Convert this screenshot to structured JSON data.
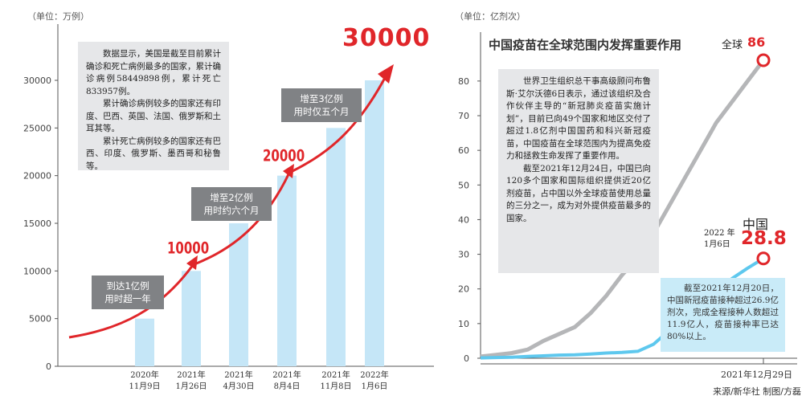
{
  "left": {
    "unit": "（单位：万例）",
    "note_paragraphs": [
      "数据显示，美国是截至目前累计确诊和死亡病例最多的国家，累计确诊病例58449898例，累计死亡833957例。",
      "累计确诊病例较多的国家还有印度、巴西、英国、法国、俄罗斯和土耳其等。",
      "累计死亡病例较多的国家还有巴西、印度、俄罗斯、墨西哥和秘鲁等。"
    ],
    "callouts": [
      "到达1亿例\n用时超一年",
      "增至2亿例\n用时约六个月",
      "增至3亿例\n用时仅五个月"
    ],
    "milestones": [
      "10000",
      "20000",
      "30000"
    ]
  },
  "right": {
    "unit": "（单位：亿剂次）",
    "title": "中国疫苗在全球范围内发挥重要作用",
    "note_paragraphs": [
      "世界卫生组织总干事高级顾问布鲁斯·艾尔沃德6日表示，通过该组织及合作伙伴主导的“新冠肺炎疫苗实施计划”，目前已向49个国家和地区交付了超过1.8亿剂中国国药和科兴新冠疫苗，中国疫苗在全球范围内为提高免疫力和拯救生命发挥了重要作用。",
      "截至2021年12月24日，中国已向120多个国家和国际组织提供近20亿剂疫苗，占中国以外全球疫苗使用总量的三分之一，成为对外提供疫苗最多的国家。"
    ],
    "blue_note": "截至2021年12月20日，中国新冠疫苗接种超过26.9亿剂次，完成全程接种人数超过11.9亿人，疫苗接种率已达80%以上。",
    "global_label": "全球",
    "global_value": "86",
    "china_label": "中国",
    "china_value": "28.8",
    "china_date": "2022 年\n1月6日",
    "x_end_label": "2021年12月29日"
  },
  "source": "来源/新华社  制图/方磊",
  "colors": {
    "bar": "#c5e6f7",
    "red": "#e0262a",
    "gray_line": "#b5b6b8",
    "blue_line": "#5ec8ee"
  },
  "chart_data": [
    {
      "type": "bar",
      "categories": [
        "2020年\n11月9日",
        "2021年\n1月26日",
        "2021年\n4月30日",
        "2021年\n8月4日",
        "2021年\n11月8日",
        "2022年\n1月6日"
      ],
      "values": [
        5000,
        10000,
        15000,
        20000,
        25000,
        30000
      ],
      "ylim": [
        0,
        30000
      ],
      "yticks": [
        0,
        5000,
        10000,
        15000,
        20000,
        25000,
        30000
      ],
      "grid": false
    },
    {
      "type": "line",
      "ylim": [
        0,
        86
      ],
      "yticks": [
        0,
        10,
        20,
        30,
        40,
        50,
        60,
        70,
        80
      ],
      "series": [
        {
          "name": "全球",
          "y": [
            0.5,
            1,
            1.5,
            2.5,
            5,
            7,
            9,
            13,
            18,
            24,
            29,
            36,
            44,
            52,
            60,
            68,
            74,
            80,
            86
          ]
        },
        {
          "name": "中国",
          "y": [
            0.1,
            0.2,
            0.3,
            0.5,
            0.7,
            0.9,
            1,
            1.2,
            1.5,
            1.7,
            2,
            4,
            8,
            11,
            15,
            18,
            23,
            26,
            28.8
          ]
        }
      ]
    }
  ]
}
